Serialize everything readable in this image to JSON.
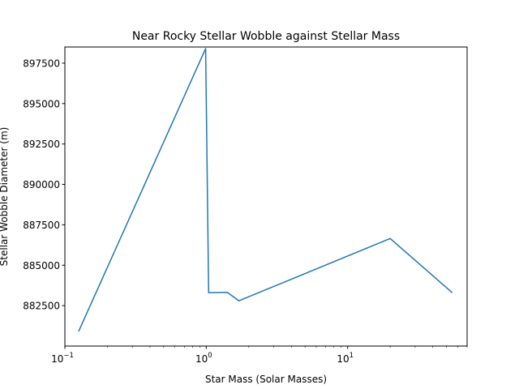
{
  "chart_data": {
    "type": "line",
    "title": "Near Rocky Stellar Wobble against Stellar Mass",
    "xlabel": "Star Mass (Solar Masses)",
    "ylabel": "Stellar Wobble Diameter (m)",
    "xscale": "log",
    "xlim": [
      0.1,
      70
    ],
    "ylim": [
      880000,
      898500
    ],
    "xticks": [
      {
        "value": 0.1,
        "base": "10",
        "exp": "−1"
      },
      {
        "value": 1,
        "base": "10",
        "exp": "0"
      },
      {
        "value": 10,
        "base": "10",
        "exp": "1"
      }
    ],
    "yticks": [
      882500,
      885000,
      887500,
      890000,
      892500,
      895000,
      897500
    ],
    "grid": false,
    "line_color": "#1f77b4",
    "series": [
      {
        "x": [
          0.125,
          0.99,
          1.04,
          1.41,
          1.7,
          20.0,
          55.0
        ],
        "y": [
          880900,
          898400,
          883300,
          883320,
          882800,
          886650,
          883300
        ]
      }
    ]
  }
}
